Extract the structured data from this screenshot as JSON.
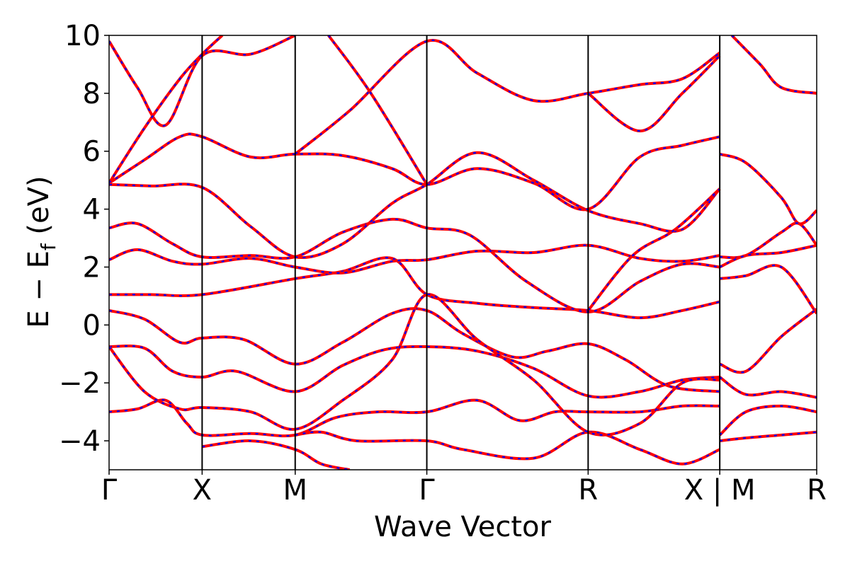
{
  "chart_data": {
    "type": "line",
    "title": "",
    "xlabel": "Wave Vector",
    "ylabel": "E − E",
    "ylabel_sub": "f",
    "ylabel_unit": " (eV)",
    "ylim": [
      -5,
      10
    ],
    "yticks": [
      -4,
      -2,
      0,
      2,
      4,
      6,
      8,
      10
    ],
    "ytick_labels": [
      "−4",
      "−2",
      "0",
      "2",
      "4",
      "6",
      "8",
      "10"
    ],
    "xlim": [
      0,
      1
    ],
    "xticks": [
      {
        "x": 0.0,
        "label": "Γ"
      },
      {
        "x": 0.1315,
        "label": "X"
      },
      {
        "x": 0.263,
        "label": "M"
      },
      {
        "x": 0.449,
        "label": "Γ"
      },
      {
        "x": 0.677,
        "label": "R"
      },
      {
        "x": 0.863,
        "label": "X | M"
      },
      {
        "x": 1.0,
        "label": "R"
      }
    ],
    "grid": false,
    "colors": {
      "series_a": "#ff0000",
      "series_b": "#0000ff"
    },
    "series": [
      {
        "values": [
          [
            0.0,
            -3.0
          ],
          [
            0.04,
            -2.9
          ],
          [
            0.08,
            -2.6
          ],
          [
            0.11,
            -3.4
          ],
          [
            0.1315,
            -3.8
          ],
          [
            0.2,
            -3.75
          ],
          [
            0.263,
            -3.8
          ],
          [
            0.32,
            -3.2
          ],
          [
            0.38,
            -3.0
          ],
          [
            0.449,
            -3.0
          ],
          [
            0.52,
            -2.6
          ],
          [
            0.58,
            -3.3
          ],
          [
            0.63,
            -3.0
          ],
          [
            0.677,
            -3.0
          ],
          [
            0.75,
            -3.0
          ],
          [
            0.81,
            -2.8
          ],
          [
            0.863,
            -2.8
          ]
        ]
      },
      {
        "values": [
          [
            0.0,
            -0.75
          ],
          [
            0.05,
            -0.8
          ],
          [
            0.09,
            -1.6
          ],
          [
            0.1315,
            -1.8
          ],
          [
            0.18,
            -1.6
          ],
          [
            0.263,
            -2.3
          ],
          [
            0.33,
            -1.4
          ],
          [
            0.39,
            -0.85
          ],
          [
            0.449,
            -0.75
          ],
          [
            0.52,
            -0.9
          ],
          [
            0.6,
            -1.5
          ],
          [
            0.677,
            -2.45
          ],
          [
            0.75,
            -2.3
          ],
          [
            0.81,
            -1.9
          ],
          [
            0.863,
            -1.8
          ]
        ]
      },
      {
        "values": [
          [
            0.0,
            0.5
          ],
          [
            0.05,
            0.2
          ],
          [
            0.1,
            -0.6
          ],
          [
            0.1315,
            -0.45
          ],
          [
            0.19,
            -0.5
          ],
          [
            0.263,
            -1.35
          ],
          [
            0.33,
            -0.6
          ],
          [
            0.4,
            0.4
          ],
          [
            0.449,
            0.5
          ],
          [
            0.5,
            -0.3
          ],
          [
            0.57,
            -1.1
          ],
          [
            0.62,
            -0.9
          ],
          [
            0.677,
            -0.65
          ],
          [
            0.73,
            -1.2
          ],
          [
            0.79,
            -2.1
          ],
          [
            0.863,
            -2.3
          ]
        ]
      },
      {
        "values": [
          [
            0.0,
            1.05
          ],
          [
            0.06,
            1.05
          ],
          [
            0.1315,
            1.05
          ],
          [
            0.263,
            1.6
          ],
          [
            0.33,
            1.85
          ],
          [
            0.4,
            2.3
          ],
          [
            0.449,
            1.05
          ],
          [
            0.52,
            0.75
          ],
          [
            0.6,
            0.6
          ],
          [
            0.677,
            0.5
          ],
          [
            0.75,
            0.25
          ],
          [
            0.81,
            0.5
          ],
          [
            0.863,
            0.8
          ]
        ]
      },
      {
        "values": [
          [
            0.0,
            2.25
          ],
          [
            0.04,
            2.6
          ],
          [
            0.09,
            2.2
          ],
          [
            0.1315,
            2.1
          ],
          [
            0.2,
            2.3
          ],
          [
            0.263,
            2.0
          ],
          [
            0.33,
            1.8
          ],
          [
            0.4,
            2.2
          ],
          [
            0.449,
            2.25
          ],
          [
            0.52,
            2.55
          ],
          [
            0.6,
            2.5
          ],
          [
            0.677,
            2.75
          ],
          [
            0.75,
            2.3
          ],
          [
            0.81,
            2.2
          ],
          [
            0.863,
            2.4
          ]
        ]
      },
      {
        "values": [
          [
            0.0,
            3.35
          ],
          [
            0.04,
            3.5
          ],
          [
            0.09,
            2.8
          ],
          [
            0.1315,
            2.35
          ],
          [
            0.2,
            2.4
          ],
          [
            0.263,
            2.35
          ],
          [
            0.33,
            3.2
          ],
          [
            0.4,
            3.65
          ],
          [
            0.449,
            3.35
          ],
          [
            0.51,
            3.1
          ],
          [
            0.59,
            1.5
          ],
          [
            0.677,
            0.45
          ],
          [
            0.75,
            1.5
          ],
          [
            0.81,
            2.1
          ],
          [
            0.863,
            2.0
          ]
        ]
      },
      {
        "values": [
          [
            0.0,
            4.85
          ],
          [
            0.06,
            4.8
          ],
          [
            0.1315,
            4.75
          ],
          [
            0.2,
            3.4
          ],
          [
            0.263,
            2.35
          ],
          [
            0.33,
            2.8
          ],
          [
            0.4,
            4.2
          ],
          [
            0.449,
            4.85
          ],
          [
            0.52,
            5.95
          ],
          [
            0.6,
            5.0
          ],
          [
            0.677,
            3.95
          ],
          [
            0.75,
            3.5
          ],
          [
            0.81,
            3.3
          ],
          [
            0.863,
            4.7
          ]
        ]
      },
      {
        "values": [
          [
            0.0,
            4.9
          ],
          [
            0.05,
            5.7
          ],
          [
            0.1,
            6.5
          ],
          [
            0.1315,
            6.5
          ],
          [
            0.2,
            5.8
          ],
          [
            0.263,
            5.9
          ],
          [
            0.33,
            5.85
          ],
          [
            0.4,
            5.4
          ],
          [
            0.449,
            4.85
          ],
          [
            0.52,
            5.4
          ],
          [
            0.6,
            4.9
          ],
          [
            0.677,
            4.0
          ],
          [
            0.75,
            5.8
          ],
          [
            0.81,
            6.2
          ],
          [
            0.863,
            6.5
          ]
        ]
      },
      {
        "values": [
          [
            0.0,
            9.8
          ],
          [
            0.04,
            8.2
          ],
          [
            0.08,
            6.9
          ],
          [
            0.1315,
            9.3
          ],
          [
            0.2,
            9.35
          ],
          [
            0.263,
            10.0
          ]
        ]
      },
      {
        "values": [
          [
            0.0,
            4.9
          ],
          [
            0.05,
            6.8
          ],
          [
            0.1,
            8.5
          ],
          [
            0.1315,
            9.35
          ],
          [
            0.16,
            10.0
          ]
        ]
      },
      {
        "values": [
          [
            0.263,
            5.9
          ],
          [
            0.34,
            7.4
          ],
          [
            0.449,
            9.8
          ],
          [
            0.52,
            8.7
          ],
          [
            0.6,
            7.75
          ],
          [
            0.677,
            8.0
          ],
          [
            0.75,
            8.3
          ],
          [
            0.81,
            8.5
          ],
          [
            0.863,
            9.4
          ]
        ]
      },
      {
        "values": [
          [
            0.31,
            10.0
          ],
          [
            0.37,
            8.0
          ],
          [
            0.449,
            4.85
          ]
        ]
      },
      {
        "values": [
          [
            0.677,
            8.0
          ],
          [
            0.75,
            6.7
          ],
          [
            0.81,
            8.0
          ],
          [
            0.863,
            9.3
          ]
        ]
      },
      {
        "values": [
          [
            0.677,
            0.5
          ],
          [
            0.74,
            2.4
          ],
          [
            0.8,
            3.3
          ],
          [
            0.863,
            4.7
          ]
        ]
      },
      {
        "values": [
          [
            0.863,
            5.9
          ],
          [
            0.9,
            5.6
          ],
          [
            0.95,
            4.4
          ],
          [
            0.975,
            3.5
          ],
          [
            1.0,
            3.95
          ]
        ]
      },
      {
        "values": [
          [
            0.863,
            2.35
          ],
          [
            0.9,
            2.4
          ],
          [
            0.95,
            3.2
          ],
          [
            0.975,
            3.5
          ],
          [
            1.0,
            2.75
          ]
        ]
      },
      {
        "values": [
          [
            0.863,
            2.0
          ],
          [
            0.9,
            2.4
          ],
          [
            0.95,
            2.5
          ],
          [
            1.0,
            2.75
          ]
        ]
      },
      {
        "values": [
          [
            0.863,
            1.6
          ],
          [
            0.9,
            1.7
          ],
          [
            0.95,
            2.0
          ],
          [
            1.0,
            0.4
          ]
        ]
      },
      {
        "values": [
          [
            0.863,
            -1.35
          ],
          [
            0.9,
            -1.6
          ],
          [
            0.95,
            -0.4
          ],
          [
            1.0,
            0.55
          ]
        ]
      },
      {
        "values": [
          [
            0.863,
            -1.8
          ],
          [
            0.9,
            -2.4
          ],
          [
            0.95,
            -2.3
          ],
          [
            1.0,
            -2.5
          ]
        ]
      },
      {
        "values": [
          [
            0.863,
            -3.8
          ],
          [
            0.9,
            -3.0
          ],
          [
            0.95,
            -2.8
          ],
          [
            1.0,
            -3.0
          ]
        ]
      },
      {
        "values": [
          [
            0.863,
            -4.0
          ],
          [
            0.9,
            -3.9
          ],
          [
            0.95,
            -3.8
          ],
          [
            1.0,
            -3.7
          ]
        ]
      },
      {
        "values": [
          [
            0.88,
            10.0
          ],
          [
            0.92,
            9.0
          ],
          [
            0.95,
            8.2
          ],
          [
            1.0,
            8.0
          ]
        ]
      },
      {
        "values": [
          [
            0.263,
            -3.8
          ],
          [
            0.3,
            -3.7
          ],
          [
            0.35,
            -4.0
          ],
          [
            0.449,
            -4.0
          ],
          [
            0.5,
            -4.3
          ],
          [
            0.6,
            -4.6
          ],
          [
            0.677,
            -3.7
          ],
          [
            0.75,
            -4.3
          ],
          [
            0.81,
            -4.8
          ],
          [
            0.863,
            -4.3
          ]
        ]
      },
      {
        "values": [
          [
            0.1315,
            -4.2
          ],
          [
            0.2,
            -4.0
          ],
          [
            0.263,
            -4.3
          ],
          [
            0.3,
            -4.8
          ],
          [
            0.34,
            -5.0
          ]
        ]
      },
      {
        "values": [
          [
            0.0,
            -0.75
          ],
          [
            0.05,
            -2.3
          ],
          [
            0.1,
            -2.9
          ],
          [
            0.1315,
            -2.85
          ],
          [
            0.2,
            -3.0
          ],
          [
            0.263,
            -3.6
          ],
          [
            0.33,
            -2.6
          ],
          [
            0.4,
            -1.2
          ],
          [
            0.449,
            1.05
          ],
          [
            0.52,
            -0.5
          ],
          [
            0.6,
            -1.9
          ],
          [
            0.677,
            -3.7
          ],
          [
            0.75,
            -3.4
          ],
          [
            0.81,
            -2.0
          ],
          [
            0.863,
            -1.9
          ]
        ]
      }
    ]
  }
}
